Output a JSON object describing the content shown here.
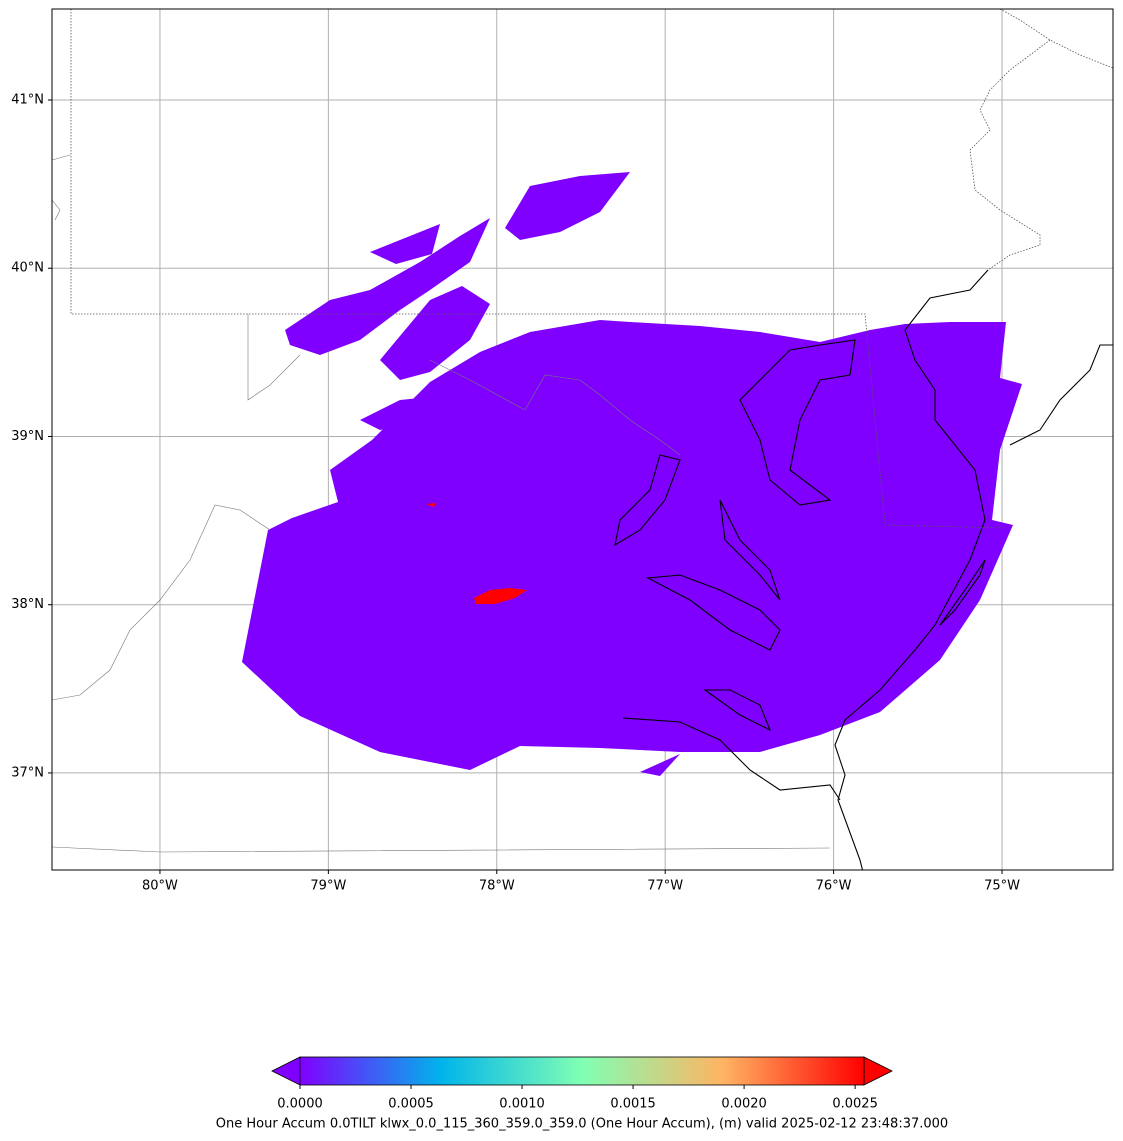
{
  "map": {
    "type": "map",
    "lonlim": [
      -80.641,
      -74.341
    ],
    "latlim": [
      36.423,
      41.541
    ],
    "xticks": [
      {
        "value": -80,
        "label": "80°W"
      },
      {
        "value": -79,
        "label": "79°W"
      },
      {
        "value": -78,
        "label": "78°W"
      },
      {
        "value": -77,
        "label": "77°W"
      },
      {
        "value": -76,
        "label": "76°W"
      },
      {
        "value": -75,
        "label": "75°W"
      }
    ],
    "yticks": [
      {
        "value": 37,
        "label": "37°N"
      },
      {
        "value": 38,
        "label": "38°N"
      },
      {
        "value": 39,
        "label": "39°N"
      },
      {
        "value": 40,
        "label": "40°N"
      },
      {
        "value": 41,
        "label": "41°N"
      }
    ],
    "grid": true
  },
  "colorbar": {
    "label": "One Hour Accum 0.0TILT klwx_0.0_115_360_359.0_359.0 (One Hour Accum), (m) valid 2025-02-12 23:48:37.000",
    "lim": [
      0,
      0.00254
    ],
    "ticks": [
      {
        "value": 0,
        "label": "0.0000"
      },
      {
        "value": 0.0005,
        "label": "0.0005"
      },
      {
        "value": 0.001,
        "label": "0.0010"
      },
      {
        "value": 0.0015,
        "label": "0.0015"
      },
      {
        "value": 0.002,
        "label": "0.0020"
      },
      {
        "value": 0.0025,
        "label": "0.0025"
      }
    ],
    "colors": [
      "#8000ff",
      "#00b4eb",
      "#80ffb4",
      "#ffb462",
      "#ff0000"
    ]
  }
}
